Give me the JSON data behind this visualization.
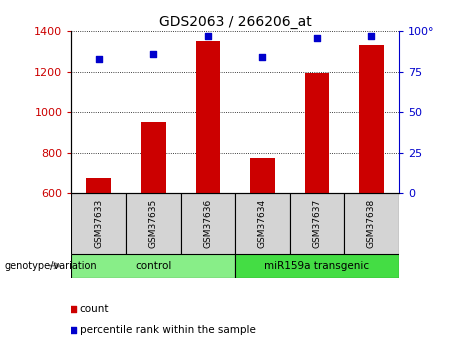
{
  "title": "GDS2063 / 266206_at",
  "samples": [
    "GSM37633",
    "GSM37635",
    "GSM37636",
    "GSM37634",
    "GSM37637",
    "GSM37638"
  ],
  "counts": [
    675,
    950,
    1350,
    775,
    1195,
    1330
  ],
  "percentile_ranks": [
    83,
    86,
    97,
    84,
    96,
    97
  ],
  "groups": [
    {
      "label": "control",
      "indices": [
        0,
        1,
        2
      ],
      "color": "#88ee88"
    },
    {
      "label": "miR159a transgenic",
      "indices": [
        3,
        4,
        5
      ],
      "color": "#44dd44"
    }
  ],
  "ymin": 600,
  "ymax": 1400,
  "yticks": [
    600,
    800,
    1000,
    1200,
    1400
  ],
  "y2min": 0,
  "y2max": 100,
  "y2ticks": [
    0,
    25,
    50,
    75,
    100
  ],
  "bar_color": "#cc0000",
  "dot_color": "#0000cc",
  "bar_width": 0.45,
  "left_label_color": "#cc0000",
  "right_label_color": "#0000cc",
  "genotype_label": "genotype/variation",
  "legend_count": "count",
  "legend_percentile": "percentile rank within the sample",
  "cell_bg": "#d4d4d4",
  "grid_linestyle": "dotted"
}
